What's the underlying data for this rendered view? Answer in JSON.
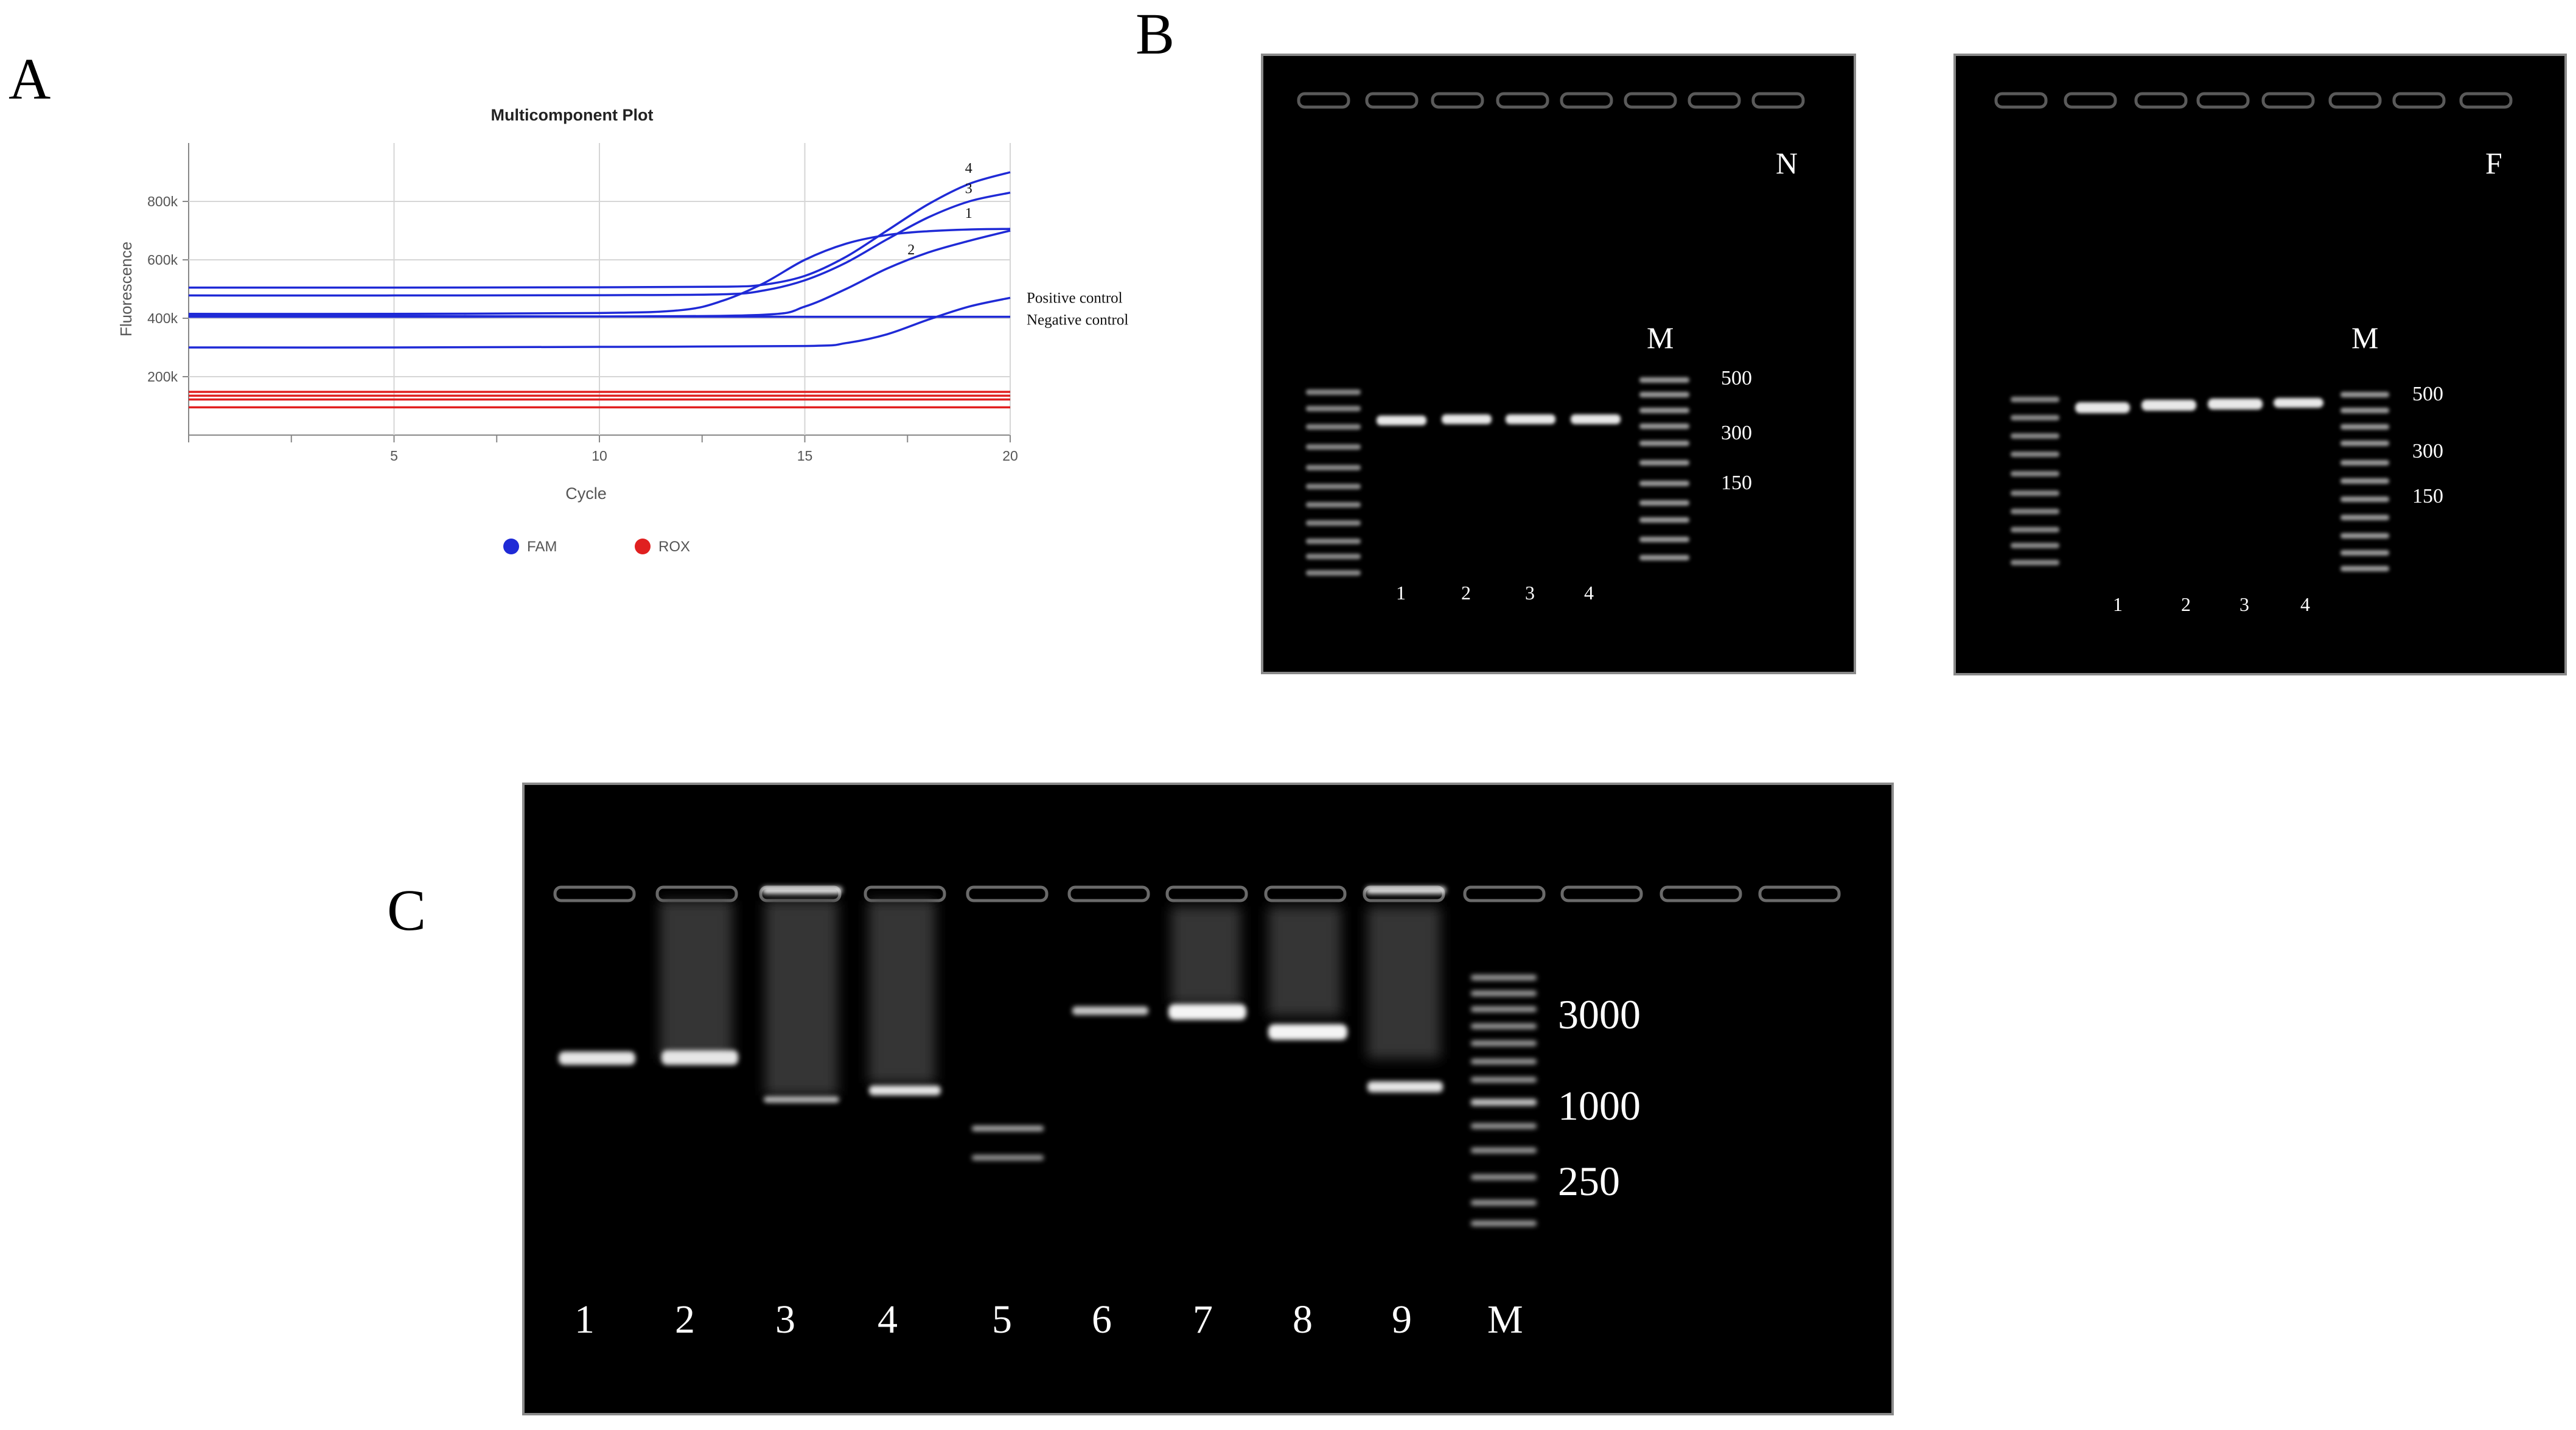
{
  "panels": {
    "a": "A",
    "b": "B",
    "c": "C"
  },
  "chart_data": {
    "type": "line",
    "title": "Multicomponent Plot",
    "xlabel": "Cycle",
    "ylabel": "Fluorescence",
    "xlim": [
      0,
      20
    ],
    "ylim": [
      0,
      1000000
    ],
    "x_ticks": [
      5,
      10,
      15,
      20
    ],
    "y_ticks": [
      200000,
      400000,
      600000,
      800000
    ],
    "y_tick_labels": [
      "200k",
      "400k",
      "600k",
      "800k"
    ],
    "grid": true,
    "legend": [
      {
        "name": "FAM",
        "color": "#1f2ad6"
      },
      {
        "name": "ROX",
        "color": "#e02020"
      }
    ],
    "series": [
      {
        "name": "4",
        "color": "#1f2ad6",
        "x": [
          0,
          5,
          10,
          13,
          14,
          15,
          16,
          17,
          18,
          19,
          20
        ],
        "y": [
          505000,
          505000,
          506000,
          508000,
          515000,
          545000,
          610000,
          700000,
          790000,
          860000,
          900000
        ]
      },
      {
        "name": "3",
        "color": "#1f2ad6",
        "x": [
          0,
          5,
          10,
          13,
          14,
          15,
          16,
          17,
          18,
          19,
          20
        ],
        "y": [
          478000,
          478000,
          479000,
          482000,
          495000,
          530000,
          590000,
          670000,
          745000,
          800000,
          830000
        ]
      },
      {
        "name": "1",
        "color": "#1f2ad6",
        "x": [
          0,
          5,
          10,
          12,
          13,
          14,
          15,
          16,
          17,
          18,
          19,
          20
        ],
        "y": [
          415000,
          415000,
          418000,
          428000,
          460000,
          520000,
          600000,
          655000,
          685000,
          698000,
          704000,
          706000
        ]
      },
      {
        "name": "2",
        "color": "#1f2ad6",
        "x": [
          0,
          5,
          10,
          14,
          15,
          16,
          17,
          18,
          19,
          20
        ],
        "y": [
          405000,
          405000,
          406000,
          412000,
          440000,
          500000,
          570000,
          625000,
          665000,
          700000
        ]
      },
      {
        "name": "Positive control",
        "color": "#1f2ad6",
        "x": [
          0,
          5,
          10,
          15,
          16,
          17,
          18,
          19,
          20
        ],
        "y": [
          300000,
          300000,
          302000,
          305000,
          315000,
          345000,
          395000,
          440000,
          470000
        ]
      },
      {
        "name": "Negative control",
        "color": "#1f2ad6",
        "x": [
          0,
          5,
          10,
          15,
          20
        ],
        "y": [
          410000,
          408000,
          406000,
          405000,
          405000
        ]
      },
      {
        "name": "",
        "color": "#e02020",
        "x": [
          0,
          20
        ],
        "y": [
          148000,
          148000
        ]
      },
      {
        "name": "",
        "color": "#e02020",
        "x": [
          0,
          20
        ],
        "y": [
          135000,
          135000
        ]
      },
      {
        "name": "",
        "color": "#e02020",
        "x": [
          0,
          20
        ],
        "y": [
          122000,
          122000
        ]
      },
      {
        "name": "",
        "color": "#e02020",
        "x": [
          0,
          20
        ],
        "y": [
          95000,
          95000
        ]
      }
    ],
    "curve_labels": [
      {
        "text": "4",
        "x": 18.9,
        "y": 915000
      },
      {
        "text": "3",
        "x": 18.9,
        "y": 845000
      },
      {
        "text": "1",
        "x": 18.9,
        "y": 760000
      },
      {
        "text": "2",
        "x": 17.5,
        "y": 635000
      },
      {
        "text": "Positive control",
        "x": 20.4,
        "y": 470000
      },
      {
        "text": "Negative control",
        "x": 20.4,
        "y": 395000
      }
    ]
  },
  "gels": {
    "n": {
      "corner_label": "N",
      "marker_label": "M",
      "size_labels": [
        "500",
        "300",
        "150"
      ],
      "lane_labels": [
        "1",
        "2",
        "3",
        "4"
      ]
    },
    "f": {
      "corner_label": "F",
      "marker_label": "M",
      "size_labels": [
        "500",
        "300",
        "150"
      ],
      "lane_labels": [
        "1",
        "2",
        "3",
        "4"
      ]
    },
    "c": {
      "size_labels": [
        "3000",
        "1000",
        "250"
      ],
      "lane_labels": [
        "1",
        "2",
        "3",
        "4",
        "5",
        "6",
        "7",
        "8",
        "9",
        "M"
      ]
    }
  }
}
